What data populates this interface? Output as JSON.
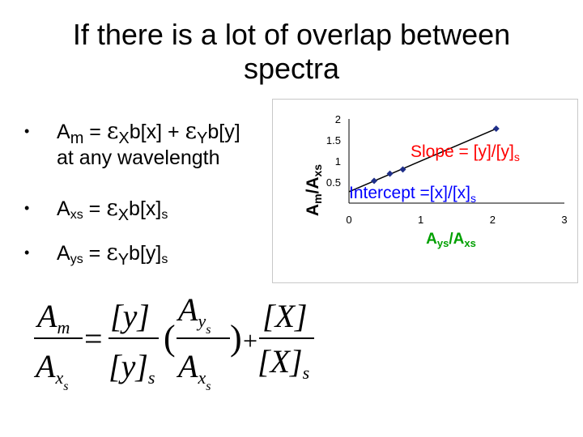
{
  "slide": {
    "title_line1": "If there is a lot of overlap between",
    "title_line2": "spectra"
  },
  "bullets": [
    {
      "marker": "•",
      "a": "A",
      "a_sub": "m",
      "eq": " = ",
      "eps1": "ε",
      "eps1_sub": "X",
      "t1": "b[x] + ",
      "eps2": "ε",
      "eps2_sub": "Y",
      "t2": "b[y]",
      "line2": "at any wavelength"
    },
    {
      "marker": "•",
      "a": "A",
      "a_sub": "xs",
      "eq": " = ",
      "eps": "ε",
      "eps_sub": "X",
      "t": "b[x]",
      "t_sub": "s"
    },
    {
      "marker": "•",
      "a": "A",
      "a_sub": "ys",
      "eq": " = ",
      "eps": "ε",
      "eps_sub": "Y",
      "t": "b[y]",
      "t_sub": "s"
    }
  ],
  "chart_data": {
    "type": "scatter",
    "xlabel": "A",
    "xlabel_sub1": "ys",
    "xlabel_sep": "/A",
    "xlabel_sub2": "xs",
    "ylabel": "A",
    "ylabel_sub1": "m",
    "ylabel_sep": "/A",
    "ylabel_sub2": "xs",
    "xlim": [
      0,
      3
    ],
    "ylim": [
      0,
      2
    ],
    "x_ticks": [
      "0",
      "1",
      "2",
      "3"
    ],
    "y_ticks": [
      "0.5",
      "1",
      "1.5",
      "2"
    ],
    "x_tick_values": [
      0,
      1,
      2,
      3
    ],
    "y_tick_values": [
      0.5,
      1,
      1.5,
      2
    ],
    "x": [
      0.35,
      0.57,
      0.75,
      2.05
    ],
    "y": [
      0.53,
      0.7,
      0.8,
      1.77
    ],
    "series_color": "#1f2f8a",
    "annotations": {
      "slope": "Slope = [y]/[y]",
      "slope_sub": "s",
      "slope_color": "#ff0000",
      "intercept": "Intercept =[x]/[x]",
      "intercept_sub": "s",
      "intercept_color": "#0000ff"
    },
    "xlabel_color": "#00a000"
  },
  "formula": {
    "Am": "A",
    "m": "m",
    "Axs": "A",
    "xs": "x",
    "s": "s",
    "equals": "=",
    "ly": "[y]",
    "lys": "[y]",
    "lys_sub": "s",
    "Ays": "A",
    "ys": "y",
    "ys_s": "s",
    "Axs2": "A",
    "xs2": "x",
    "xs2_s": "s",
    "lparen": "(",
    "rparen": ")",
    "plus": "+",
    "X": "[X]",
    "Xs": "[X]",
    "Xs_sub": "s"
  }
}
